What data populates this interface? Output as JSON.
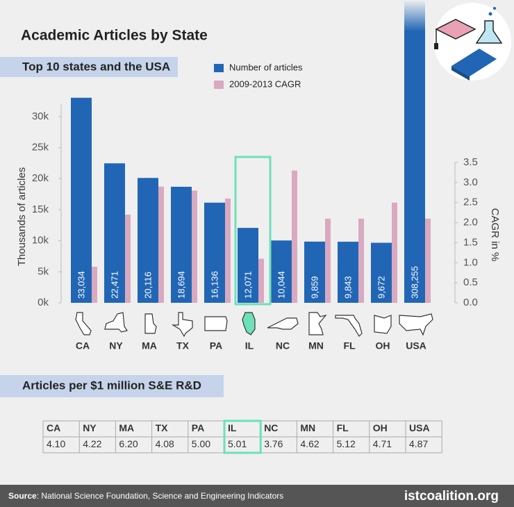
{
  "chart_data": {
    "type": "bar",
    "title": "Academic Articles by State",
    "subtitle": "Top 10 states and the USA",
    "ylabel": "Thousands of articles",
    "y2label": "CAGR in %",
    "categories": [
      "CA",
      "NY",
      "MA",
      "TX",
      "PA",
      "IL",
      "NC",
      "MN",
      "FL",
      "OH",
      "USA"
    ],
    "series": [
      {
        "name": "Number of articles",
        "color": "#2166b5",
        "values": [
          33034,
          22471,
          20116,
          18694,
          16136,
          12071,
          10044,
          9859,
          9843,
          9672,
          308255
        ],
        "value_labels": [
          "33,034",
          "22,471",
          "20,116",
          "18,694",
          "16,136",
          "12,071",
          "10,044",
          "9,859",
          "9,843",
          "9,672",
          "308,255"
        ]
      },
      {
        "name": "2009-2013 CAGR",
        "color": "#d9a9c0",
        "axis": "y2",
        "values": [
          0.9,
          2.2,
          2.9,
          2.8,
          2.6,
          1.1,
          3.3,
          2.1,
          2.1,
          2.5,
          2.1
        ]
      }
    ],
    "ylim": [
      0,
      32000
    ],
    "yticks": [
      {
        "value": 0,
        "label": "0k"
      },
      {
        "value": 5000,
        "label": "5k"
      },
      {
        "value": 10000,
        "label": "10k"
      },
      {
        "value": 15000,
        "label": "15k"
      },
      {
        "value": 20000,
        "label": "20k"
      },
      {
        "value": 25000,
        "label": "25k"
      },
      {
        "value": 30000,
        "label": "30k"
      }
    ],
    "y2lim": [
      0,
      3.5
    ],
    "y2ticks": [
      {
        "value": 0,
        "label": "0.0"
      },
      0.5,
      {
        "value": 1,
        "label": "1.0"
      },
      1.5,
      {
        "value": 2,
        "label": "2.0"
      },
      2.5,
      {
        "value": 3,
        "label": "3.0"
      },
      3.5
    ],
    "highlight": "IL",
    "highlight_color": "#6ee0b8"
  },
  "table": {
    "title": "Articles per $1 million S&E R&D",
    "header": [
      "CA",
      "NY",
      "MA",
      "TX",
      "PA",
      "IL",
      "NC",
      "MN",
      "FL",
      "OH",
      "USA"
    ],
    "rows": [
      [
        "4.10",
        "4.22",
        "6.20",
        "4.08",
        "5.00",
        "5.01",
        "3.76",
        "4.62",
        "5.12",
        "4.71",
        "4.87"
      ]
    ]
  },
  "footer": {
    "source_label": "Source",
    "source_text": ": National Science Foundation, Science and Engineering Indicators",
    "brand": "istcoalition.org"
  }
}
